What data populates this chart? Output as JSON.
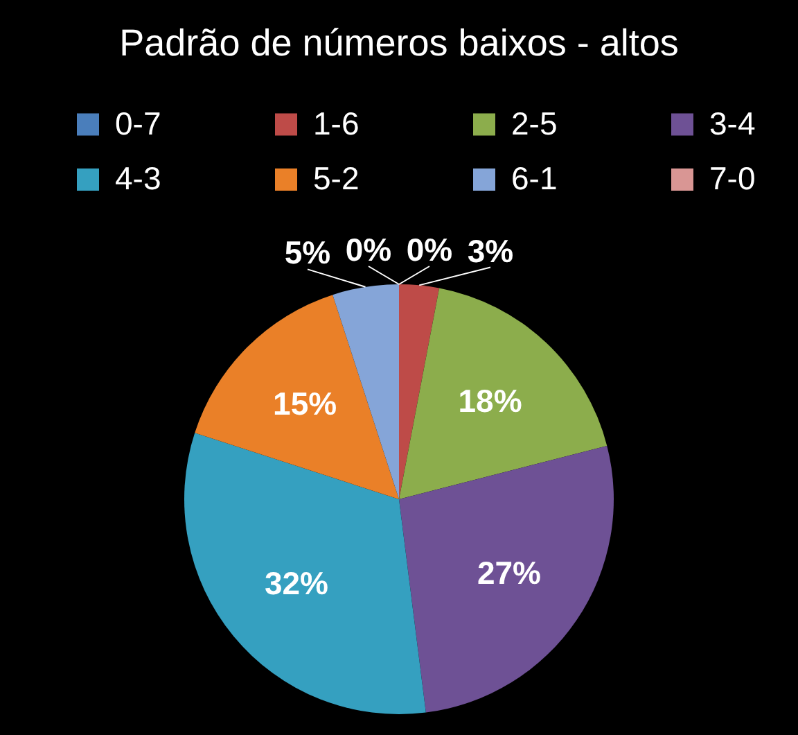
{
  "chart_data": {
    "type": "pie",
    "title": "Padrão de números baixos - altos",
    "categories": [
      "0-7",
      "1-6",
      "2-5",
      "3-4",
      "4-3",
      "5-2",
      "6-1",
      "7-0"
    ],
    "values": [
      0,
      3,
      18,
      27,
      32,
      15,
      5,
      0
    ],
    "colors": [
      "#4a7ebb",
      "#be4b48",
      "#8cad4c",
      "#6e5195",
      "#35a0c0",
      "#ea8028",
      "#85a5d8",
      "#d99694"
    ],
    "value_labels": [
      "0%",
      "3%",
      "18%",
      "27%",
      "32%",
      "15%",
      "5%",
      "0%"
    ],
    "legend": "top"
  }
}
